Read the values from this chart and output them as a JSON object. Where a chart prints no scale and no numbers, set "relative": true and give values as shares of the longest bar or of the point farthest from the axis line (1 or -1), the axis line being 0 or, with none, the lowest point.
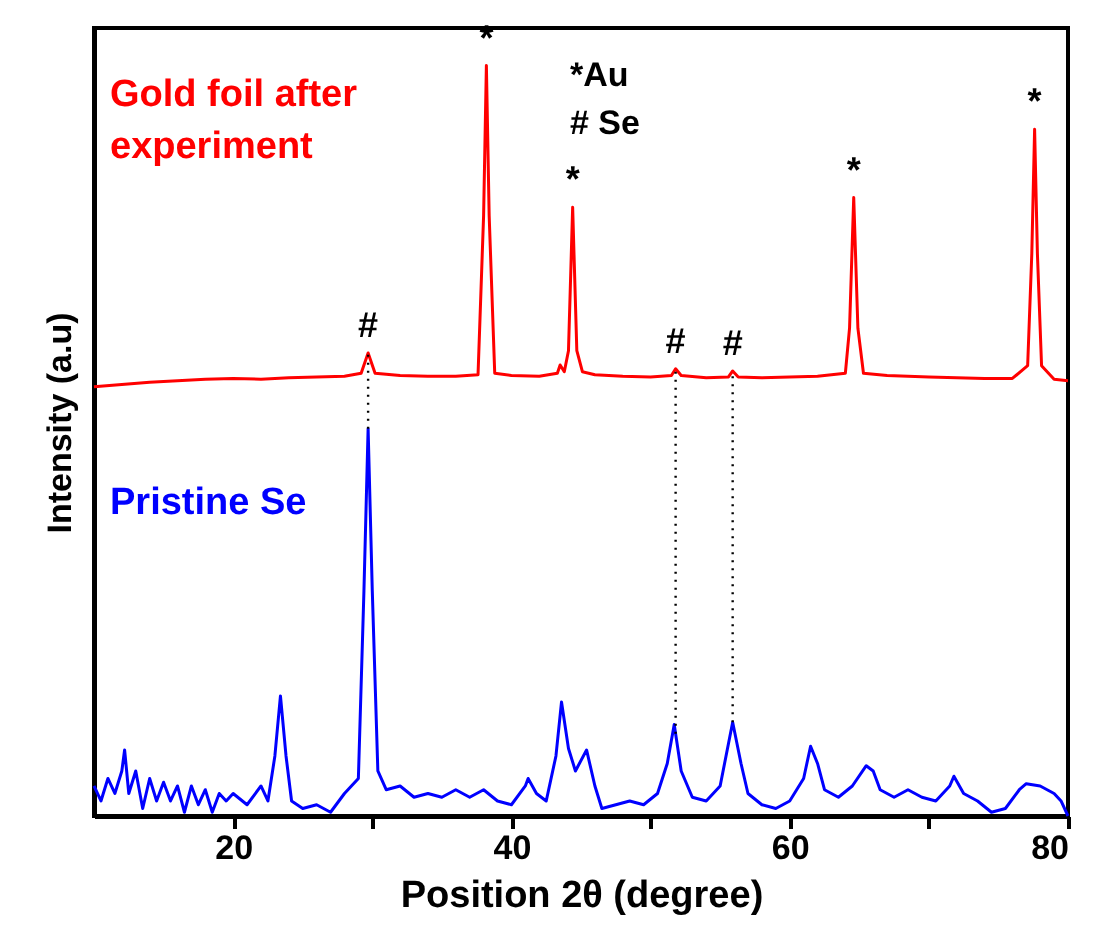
{
  "chart_data": {
    "type": "line",
    "relative": true,
    "xlabel": "Position 2θ (degree)",
    "ylabel": "Intensity (a.u)",
    "xlim": [
      10,
      80
    ],
    "xticks": [
      20,
      40,
      60,
      80,
      {
        "value": 30,
        "label": null
      },
      {
        "value": 50,
        "label": null
      },
      {
        "value": 70,
        "label": null
      }
    ],
    "grid": false,
    "marker": "none",
    "line_style": "solid",
    "series": [
      {
        "name": "Gold foil after experiment",
        "color": "#ff0000",
        "x": [
          10,
          12,
          14,
          16,
          18,
          20,
          22,
          24,
          26,
          28,
          29.2,
          29.7,
          30.2,
          32,
          34,
          36,
          37.6,
          38.0,
          38.2,
          38.4,
          38.8,
          40,
          42,
          43.3,
          43.5,
          43.8,
          44.1,
          44.4,
          44.7,
          45.1,
          46,
          48,
          50,
          51.5,
          51.8,
          52.2,
          54,
          55.6,
          55.9,
          56.3,
          58,
          60,
          62,
          64.0,
          64.3,
          64.6,
          64.9,
          65.3,
          67,
          70,
          72,
          74,
          76,
          77.1,
          77.4,
          77.6,
          77.8,
          78.1,
          79,
          80
        ],
        "values": [
          0.572,
          0.575,
          0.578,
          0.58,
          0.582,
          0.583,
          0.582,
          0.584,
          0.585,
          0.586,
          0.59,
          0.617,
          0.59,
          0.587,
          0.586,
          0.586,
          0.588,
          0.8,
          1.0,
          0.8,
          0.59,
          0.587,
          0.586,
          0.59,
          0.601,
          0.592,
          0.62,
          0.811,
          0.62,
          0.592,
          0.588,
          0.586,
          0.585,
          0.587,
          0.596,
          0.587,
          0.584,
          0.585,
          0.593,
          0.585,
          0.584,
          0.585,
          0.586,
          0.59,
          0.65,
          0.824,
          0.65,
          0.59,
          0.587,
          0.585,
          0.584,
          0.583,
          0.583,
          0.6,
          0.75,
          0.915,
          0.75,
          0.6,
          0.582,
          0.58
        ]
      },
      {
        "name": "Pristine Se",
        "color": "#0000ff",
        "x": [
          10,
          10.5,
          11,
          11.5,
          12,
          12.2,
          12.5,
          13,
          13.5,
          14,
          14.5,
          15,
          15.5,
          16,
          16.5,
          17,
          17.5,
          18,
          18.5,
          19,
          19.5,
          20,
          21,
          22,
          22.5,
          23,
          23.4,
          23.8,
          24.2,
          25,
          26,
          27,
          28,
          29,
          29.4,
          29.7,
          30.0,
          30.4,
          31,
          32,
          33,
          34,
          35,
          36,
          37,
          38,
          39,
          40,
          41,
          41.2,
          41.8,
          42.5,
          43.2,
          43.6,
          44.1,
          44.6,
          45.4,
          46.0,
          46.5,
          47.5,
          48.5,
          49.5,
          50.5,
          51.2,
          51.7,
          52.2,
          53,
          54,
          55,
          55.9,
          56.5,
          57,
          58,
          59,
          60,
          61,
          61.5,
          62,
          62.5,
          63.5,
          64.5,
          65.5,
          66,
          66.5,
          67.5,
          68.5,
          69.5,
          70.5,
          71.5,
          71.8,
          72.5,
          73.5,
          74.5,
          75.5,
          76.5,
          77,
          78,
          79,
          79.5,
          80
        ],
        "values": [
          0.04,
          0.02,
          0.05,
          0.03,
          0.06,
          0.088,
          0.03,
          0.06,
          0.01,
          0.05,
          0.02,
          0.045,
          0.02,
          0.04,
          0.005,
          0.04,
          0.015,
          0.035,
          0.005,
          0.03,
          0.02,
          0.03,
          0.015,
          0.04,
          0.02,
          0.08,
          0.16,
          0.08,
          0.02,
          0.01,
          0.015,
          0.005,
          0.03,
          0.05,
          0.3,
          0.516,
          0.3,
          0.06,
          0.035,
          0.04,
          0.025,
          0.03,
          0.025,
          0.035,
          0.025,
          0.035,
          0.02,
          0.015,
          0.04,
          0.05,
          0.03,
          0.02,
          0.08,
          0.152,
          0.09,
          0.06,
          0.088,
          0.04,
          0.01,
          0.015,
          0.02,
          0.015,
          0.03,
          0.07,
          0.122,
          0.06,
          0.025,
          0.02,
          0.04,
          0.125,
          0.07,
          0.03,
          0.015,
          0.01,
          0.02,
          0.05,
          0.093,
          0.07,
          0.035,
          0.025,
          0.04,
          0.067,
          0.06,
          0.035,
          0.025,
          0.035,
          0.025,
          0.02,
          0.04,
          0.053,
          0.03,
          0.02,
          0.005,
          0.01,
          0.035,
          0.043,
          0.04,
          0.03,
          0.02,
          0.0
        ]
      }
    ],
    "ref_lines": [
      {
        "axis": "x",
        "value": 29.7,
        "label": null,
        "color": "#000000",
        "line_style": "dotted"
      },
      {
        "axis": "x",
        "value": 51.8,
        "label": null,
        "color": "#000000",
        "line_style": "dotted"
      },
      {
        "axis": "x",
        "value": 55.9,
        "label": null,
        "color": "#000000",
        "line_style": "dotted"
      }
    ],
    "annotations": [
      {
        "text": "#",
        "x": 29.7,
        "y": 0.617
      },
      {
        "text": "*",
        "x": 38.2,
        "y": 1.0
      },
      {
        "text": "*",
        "x": 44.4,
        "y": 0.811
      },
      {
        "text": "#",
        "x": 51.8,
        "y": 0.596
      },
      {
        "text": "#",
        "x": 55.9,
        "y": 0.593
      },
      {
        "text": "*",
        "x": 64.6,
        "y": 0.824
      },
      {
        "text": "*",
        "x": 77.6,
        "y": 0.915
      },
      "*Au",
      "# Se"
    ]
  }
}
